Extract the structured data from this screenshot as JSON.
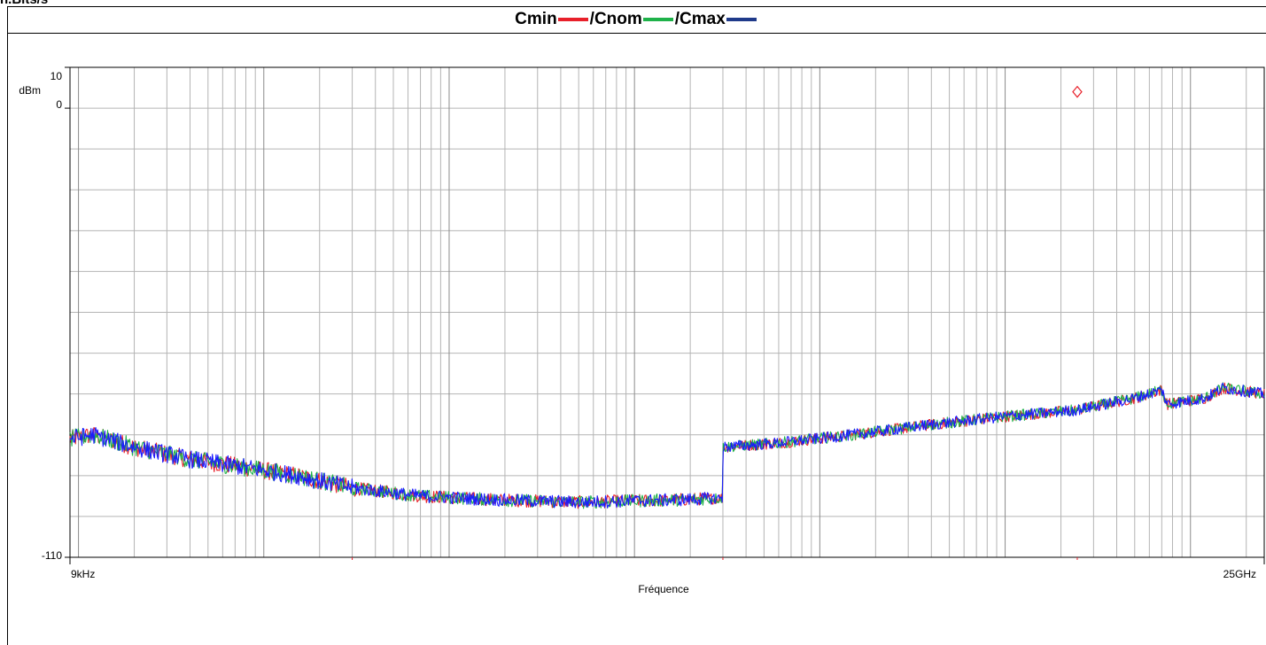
{
  "header": {
    "clipped_label": "n.Bits/s"
  },
  "chart_data": {
    "type": "line",
    "title_parts": [
      "Cmin",
      " /Cnom",
      " /Cmax"
    ],
    "xlabel": "Fréquence",
    "ylabel": "dBm",
    "x_tick_labels": [
      "9kHz",
      "25GHz"
    ],
    "y_tick_labels": [
      "10",
      "0",
      "-110"
    ],
    "xlim_hz": [
      9000,
      25000000000
    ],
    "xscale": "log",
    "ylim": [
      -110,
      10
    ],
    "grid": true,
    "series": [
      {
        "name": "Cmin",
        "color": "#e8202a"
      },
      {
        "name": "Cnom",
        "color": "#1fb24a"
      },
      {
        "name": "Cmax",
        "color": "#1f3a8a"
      }
    ],
    "trace_color": "#1a1aff",
    "marker": {
      "x_hz": 2450000000,
      "y": 4,
      "color": "#e8202a",
      "shape": "diamond"
    },
    "points": [
      [
        9000,
        -81
      ],
      [
        12000,
        -80
      ],
      [
        20000,
        -83
      ],
      [
        40000,
        -86
      ],
      [
        80000,
        -88
      ],
      [
        150000,
        -90
      ],
      [
        300000,
        -93
      ],
      [
        700000,
        -95
      ],
      [
        2000000,
        -96
      ],
      [
        5000000,
        -96.5
      ],
      [
        15000000,
        -96
      ],
      [
        30000000,
        -95.5
      ],
      [
        30000000,
        -83
      ],
      [
        60000000,
        -82
      ],
      [
        150000000,
        -80
      ],
      [
        400000000,
        -77.5
      ],
      [
        1000000000,
        -75.5
      ],
      [
        2400000000,
        -74
      ],
      [
        5000000000,
        -71
      ],
      [
        7000000000,
        -69
      ],
      [
        7500000000,
        -72.5
      ],
      [
        12000000000,
        -71
      ],
      [
        15000000000,
        -68.5
      ],
      [
        25000000000,
        -70
      ]
    ]
  }
}
